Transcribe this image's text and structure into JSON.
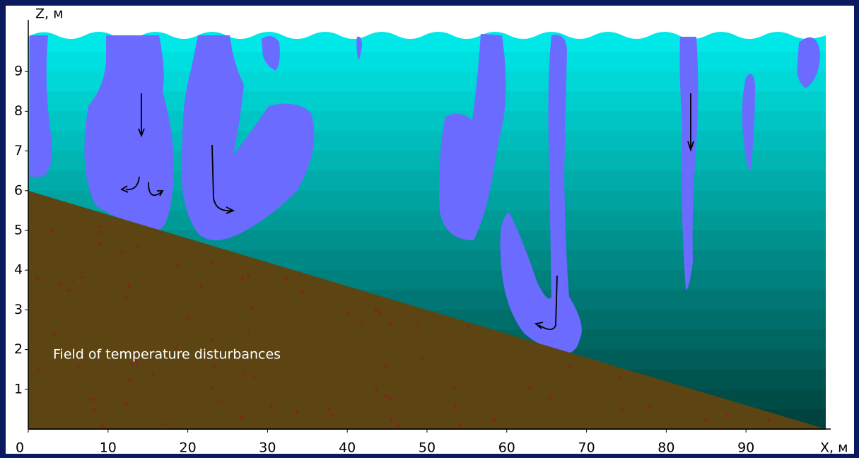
{
  "figure": {
    "y_axis_label": "Z, м",
    "x_axis_label": "X, м",
    "xticks": [
      0,
      10,
      20,
      30,
      40,
      50,
      60,
      70,
      80,
      90
    ],
    "yticks": [
      1,
      2,
      3,
      4,
      5,
      6,
      7,
      8,
      9
    ],
    "annotation": "Field  of  temperature disturbances"
  }
}
